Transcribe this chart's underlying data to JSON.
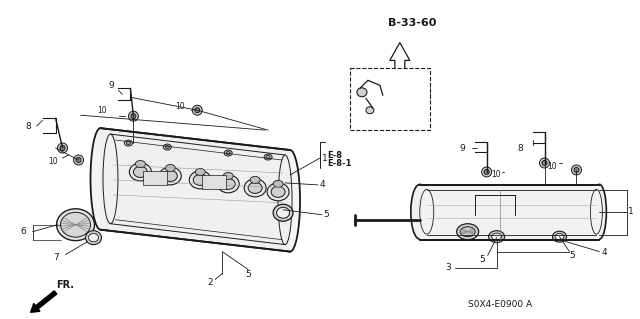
{
  "bg_color": "#ffffff",
  "line_color": "#1a1a1a",
  "part_num_label": "B-33-60",
  "ref_code": "E-8\nE-8-1",
  "footer_code": "S0X4-E0900 A",
  "fr_label": "FR.",
  "fig_width": 6.4,
  "fig_height": 3.19,
  "dpi": 100
}
